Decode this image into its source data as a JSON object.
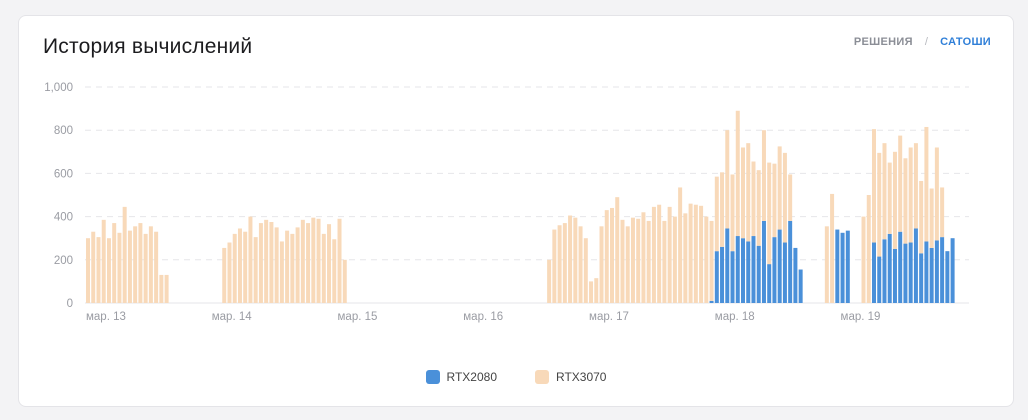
{
  "card": {
    "title": "История вычислений",
    "tabs": [
      {
        "label": "РЕШЕНИЯ",
        "active": false
      },
      {
        "label": "САТОШИ",
        "active": true
      }
    ]
  },
  "colors": {
    "rtx2080": "#4a90d9",
    "rtx3070": "#f8d9b9",
    "grid": "#e6e6e9",
    "axis_text": "#9a9ca3"
  },
  "chart_data": {
    "type": "bar",
    "stacked": true,
    "ylim": [
      0,
      1000
    ],
    "yticks": [
      "0",
      "200",
      "400",
      "600",
      "800",
      "1,000"
    ],
    "ytick_values": [
      0,
      200,
      400,
      600,
      800,
      1000
    ],
    "xticks": [
      {
        "label": "мар. 13",
        "index": 0
      },
      {
        "label": "мар. 14",
        "index": 24
      },
      {
        "label": "мар. 15",
        "index": 48
      },
      {
        "label": "мар. 16",
        "index": 72
      },
      {
        "label": "мар. 17",
        "index": 96
      },
      {
        "label": "мар. 18",
        "index": 120
      },
      {
        "label": "мар. 19",
        "index": 144
      }
    ],
    "legend_position": "bottom-center",
    "grid": true,
    "series": [
      {
        "name": "RTX2080",
        "values": [
          0,
          0,
          0,
          0,
          0,
          0,
          0,
          0,
          0,
          0,
          0,
          0,
          0,
          0,
          0,
          0,
          0,
          0,
          0,
          0,
          0,
          0,
          0,
          0,
          0,
          0,
          0,
          0,
          0,
          0,
          0,
          0,
          0,
          0,
          0,
          0,
          0,
          0,
          0,
          0,
          0,
          0,
          0,
          0,
          0,
          0,
          0,
          0,
          0,
          0,
          0,
          0,
          0,
          0,
          0,
          0,
          0,
          0,
          0,
          0,
          0,
          0,
          0,
          0,
          0,
          0,
          0,
          0,
          0,
          0,
          0,
          0,
          0,
          0,
          0,
          0,
          0,
          0,
          0,
          0,
          0,
          0,
          0,
          0,
          0,
          0,
          0,
          0,
          0,
          0,
          0,
          0,
          0,
          0,
          0,
          0,
          0,
          0,
          0,
          0,
          0,
          0,
          0,
          0,
          0,
          0,
          0,
          0,
          0,
          0,
          0,
          0,
          0,
          0,
          0,
          0,
          0,
          0,
          0,
          10,
          240,
          260,
          345,
          240,
          310,
          300,
          285,
          310,
          265,
          380,
          180,
          305,
          340,
          280,
          380,
          255,
          155,
          0,
          0,
          0,
          0,
          0,
          0,
          340,
          325,
          335,
          0,
          0,
          0,
          0,
          280,
          215,
          295,
          320,
          250,
          330,
          275,
          280,
          345,
          230,
          285,
          255,
          290,
          305,
          240,
          300
        ]
      },
      {
        "name": "RTX3070",
        "values": [
          300,
          330,
          305,
          385,
          300,
          370,
          325,
          445,
          335,
          355,
          370,
          320,
          355,
          330,
          130,
          130,
          0,
          0,
          0,
          0,
          0,
          0,
          0,
          0,
          0,
          0,
          255,
          280,
          320,
          345,
          330,
          400,
          305,
          370,
          385,
          375,
          350,
          285,
          335,
          320,
          350,
          385,
          370,
          395,
          390,
          320,
          365,
          295,
          390,
          200,
          0,
          0,
          0,
          0,
          0,
          0,
          0,
          0,
          0,
          0,
          0,
          0,
          0,
          0,
          0,
          0,
          0,
          0,
          0,
          0,
          0,
          0,
          0,
          0,
          0,
          0,
          0,
          0,
          0,
          0,
          0,
          0,
          0,
          0,
          0,
          0,
          0,
          0,
          200,
          340,
          360,
          370,
          405,
          395,
          355,
          300,
          100,
          115,
          355,
          430,
          440,
          490,
          385,
          355,
          395,
          390,
          420,
          380,
          445,
          455,
          380,
          445,
          400,
          535,
          415,
          460,
          455,
          450,
          400,
          370,
          345,
          345,
          455,
          355,
          580,
          420,
          455,
          345,
          350,
          420,
          470,
          340,
          385,
          415,
          215,
          0,
          0,
          0,
          0,
          0,
          0,
          355,
          505,
          0,
          0,
          0,
          0,
          0,
          400,
          500,
          525,
          480,
          445,
          330,
          450,
          445,
          395,
          440,
          395,
          335,
          530,
          275,
          430,
          230,
          0,
          0,
          0,
          0,
          0,
          0,
          0,
          0,
          0,
          0,
          0,
          0,
          0,
          0,
          0,
          0
        ]
      }
    ]
  },
  "legend": [
    {
      "name": "RTX2080"
    },
    {
      "name": "RTX3070"
    }
  ]
}
